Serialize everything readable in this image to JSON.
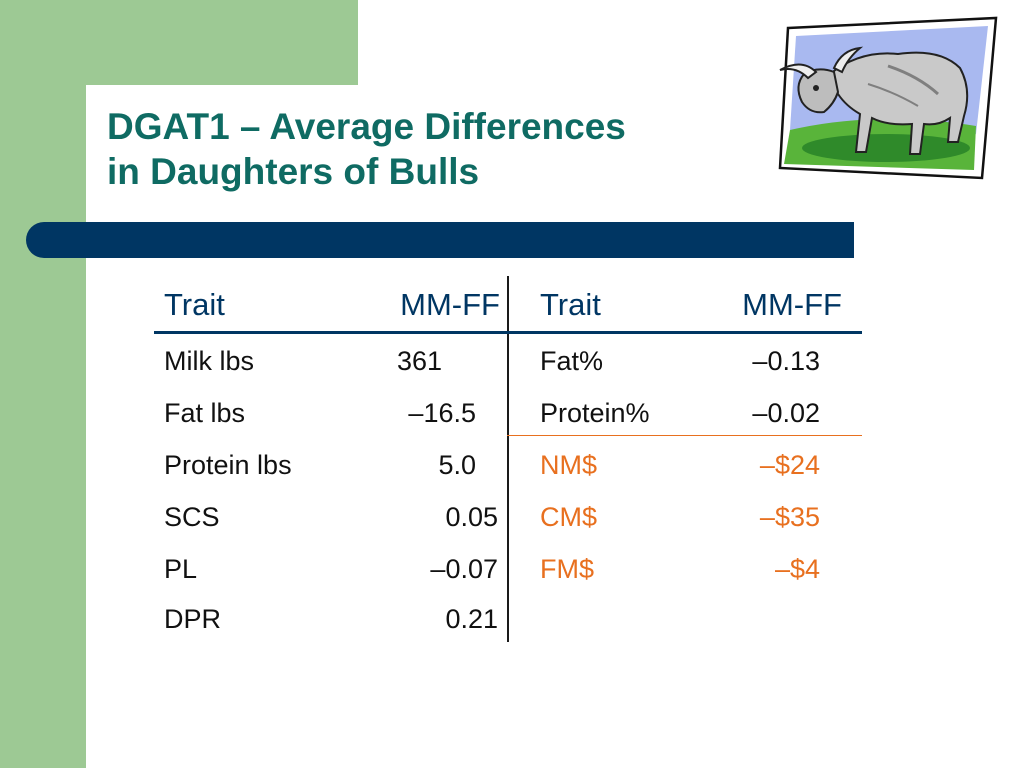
{
  "title": {
    "line1": "DGAT1 – Average Differences",
    "line2": "in Daughters of Bulls"
  },
  "clipart": {
    "icon": "bull-clipart"
  },
  "colors": {
    "title": "#0f6b63",
    "header": "#003663",
    "accent_orange": "#e8701f",
    "side_green": "#9dc994",
    "rule_navy": "#003663"
  },
  "table": {
    "left_header": {
      "trait": "Trait",
      "value": "MM-FF"
    },
    "right_header": {
      "trait": "Trait",
      "value": "MM-FF"
    },
    "left_rows": [
      {
        "trait": "Milk lbs",
        "value": "361"
      },
      {
        "trait": "Fat lbs",
        "value": "–16.5"
      },
      {
        "trait": "Protein lbs",
        "value": "5.0"
      },
      {
        "trait": "SCS",
        "value": "0.05"
      },
      {
        "trait": "PL",
        "value": "–0.07"
      },
      {
        "trait": "DPR",
        "value": "0.21"
      }
    ],
    "right_rows": [
      {
        "trait": "Fat%",
        "value": "–0.13"
      },
      {
        "trait": "Protein%",
        "value": "–0.02"
      },
      {
        "trait": "NM$",
        "value": "–$24"
      },
      {
        "trait": "CM$",
        "value": "–$35"
      },
      {
        "trait": "FM$",
        "value": "–$4"
      }
    ]
  }
}
